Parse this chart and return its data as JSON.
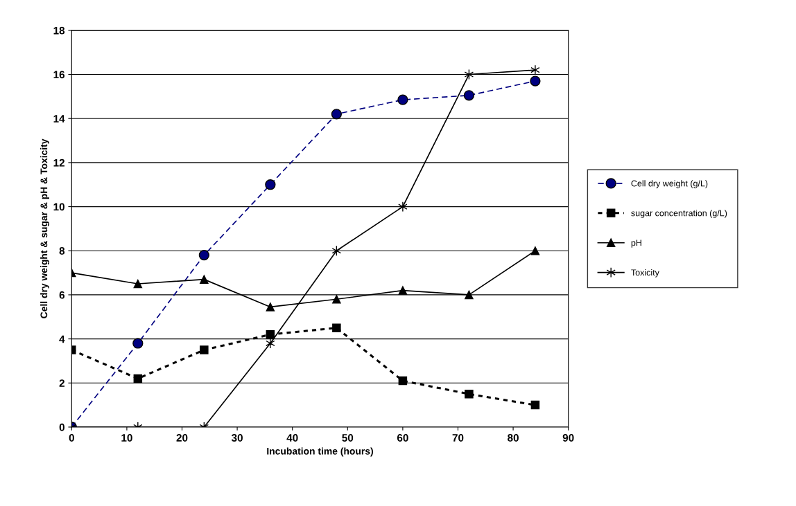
{
  "chart_data": {
    "type": "line",
    "xlabel": "Incubation time (hours)",
    "ylabel": "Cell dry weight & sugar & pH & Toxicity",
    "x": [
      0,
      12,
      24,
      36,
      48,
      60,
      72,
      84
    ],
    "series": [
      {
        "name": "Cell dry weight (g/L)",
        "color": "#000080",
        "values": [
          0,
          3.8,
          7.8,
          11.0,
          14.2,
          14.85,
          15.05,
          15.7
        ],
        "marker": "circle",
        "line_style": "dashed"
      },
      {
        "name": "sugar concentration (g/L)",
        "color": "#000000",
        "values": [
          3.5,
          2.2,
          3.5,
          4.2,
          4.5,
          2.1,
          1.5,
          1.0
        ],
        "marker": "square",
        "line_style": "dotted"
      },
      {
        "name": "pH",
        "color": "#000000",
        "values": [
          7.0,
          6.5,
          6.7,
          5.45,
          5.8,
          6.2,
          6.0,
          8.0
        ],
        "marker": "triangle",
        "line_style": "solid"
      },
      {
        "name": "Toxicity",
        "color": "#000000",
        "values": [
          0,
          0,
          0,
          3.8,
          8,
          10,
          16,
          16.2
        ],
        "marker": "cross",
        "line_style": "solid"
      }
    ],
    "xlim": [
      0,
      90
    ],
    "xticks": [
      0,
      10,
      20,
      30,
      40,
      50,
      60,
      70,
      80,
      90
    ],
    "ylim": [
      0,
      18
    ],
    "yticks": [
      0,
      2,
      4,
      6,
      8,
      10,
      12,
      14,
      16,
      18
    ],
    "grid": "y",
    "legend": "right"
  }
}
